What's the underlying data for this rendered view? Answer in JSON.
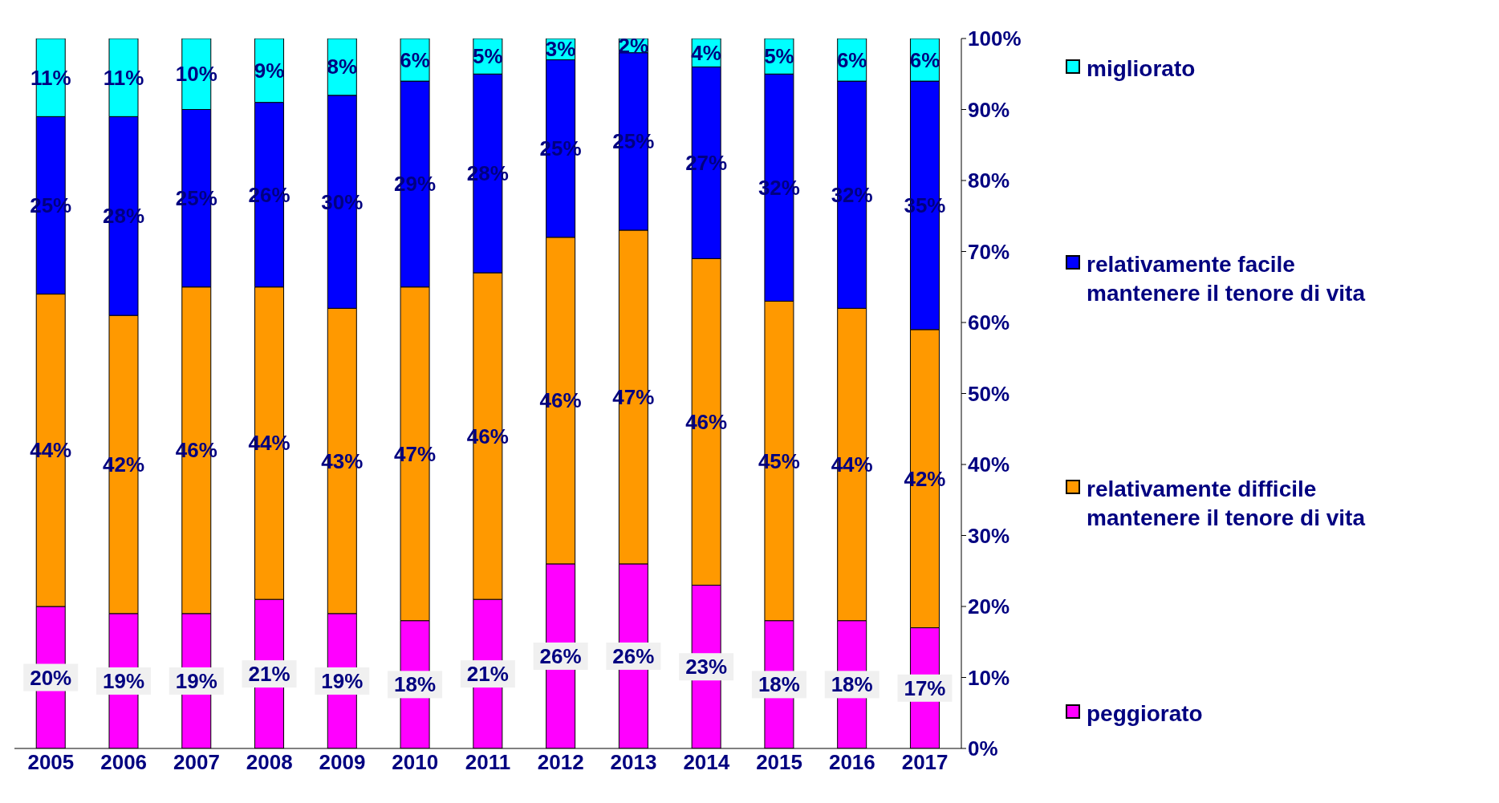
{
  "chart_data": {
    "type": "bar",
    "stacked": true,
    "categories": [
      "2005",
      "2006",
      "2007",
      "2008",
      "2009",
      "2010",
      "2011",
      "2012",
      "2013",
      "2014",
      "2015",
      "2016",
      "2017"
    ],
    "series": [
      {
        "name": "peggiorato",
        "color": "#ff00ff",
        "values": [
          20,
          19,
          19,
          21,
          19,
          18,
          21,
          26,
          26,
          23,
          18,
          18,
          17
        ],
        "value_labels": [
          "20%",
          "19%",
          "19%",
          "21%",
          "19%",
          "18%",
          "21%",
          "26%",
          "26%",
          "23%",
          "18%",
          "18%",
          "17%"
        ]
      },
      {
        "name": "relativamente difficile mantenere il tenore di vita",
        "color": "#ff9900",
        "values": [
          44,
          42,
          46,
          44,
          43,
          47,
          46,
          46,
          47,
          46,
          45,
          44,
          42
        ],
        "value_labels": [
          "44%",
          "42%",
          "46%",
          "44%",
          "43%",
          "47%",
          "46%",
          "46%",
          "47%",
          "46%",
          "45%",
          "44%",
          "42%"
        ]
      },
      {
        "name": "relativamente facile mantenere il tenore di vita",
        "color": "#0000ff",
        "values": [
          25,
          28,
          25,
          26,
          30,
          29,
          28,
          25,
          25,
          27,
          32,
          32,
          35
        ],
        "value_labels": [
          "25%",
          "28%",
          "25%",
          "26%",
          "30%",
          "29%",
          "28%",
          "25%",
          "25%",
          "27%",
          "32%",
          "32%",
          "35%"
        ]
      },
      {
        "name": "migliorato",
        "color": "#00ffff",
        "values": [
          11,
          11,
          10,
          9,
          8,
          6,
          5,
          3,
          2,
          4,
          5,
          6,
          6
        ],
        "value_labels": [
          "11%",
          "11%",
          "10%",
          "9%",
          "8%",
          "6%",
          "5%",
          "3%",
          "2%",
          "4%",
          "5%",
          "6%",
          "6%"
        ]
      }
    ],
    "ylim": [
      0,
      100
    ],
    "yticks": [
      {
        "value": 0,
        "label": "0%"
      },
      {
        "value": 10,
        "label": "10%"
      },
      {
        "value": 20,
        "label": "20%"
      },
      {
        "value": 30,
        "label": "30%"
      },
      {
        "value": 40,
        "label": "40%"
      },
      {
        "value": 50,
        "label": "50%"
      },
      {
        "value": 60,
        "label": "60%"
      },
      {
        "value": 70,
        "label": "70%"
      },
      {
        "value": 80,
        "label": "80%"
      },
      {
        "value": 90,
        "label": "90%"
      },
      {
        "value": 100,
        "label": "100%"
      }
    ],
    "grid": false,
    "legend": "right"
  }
}
